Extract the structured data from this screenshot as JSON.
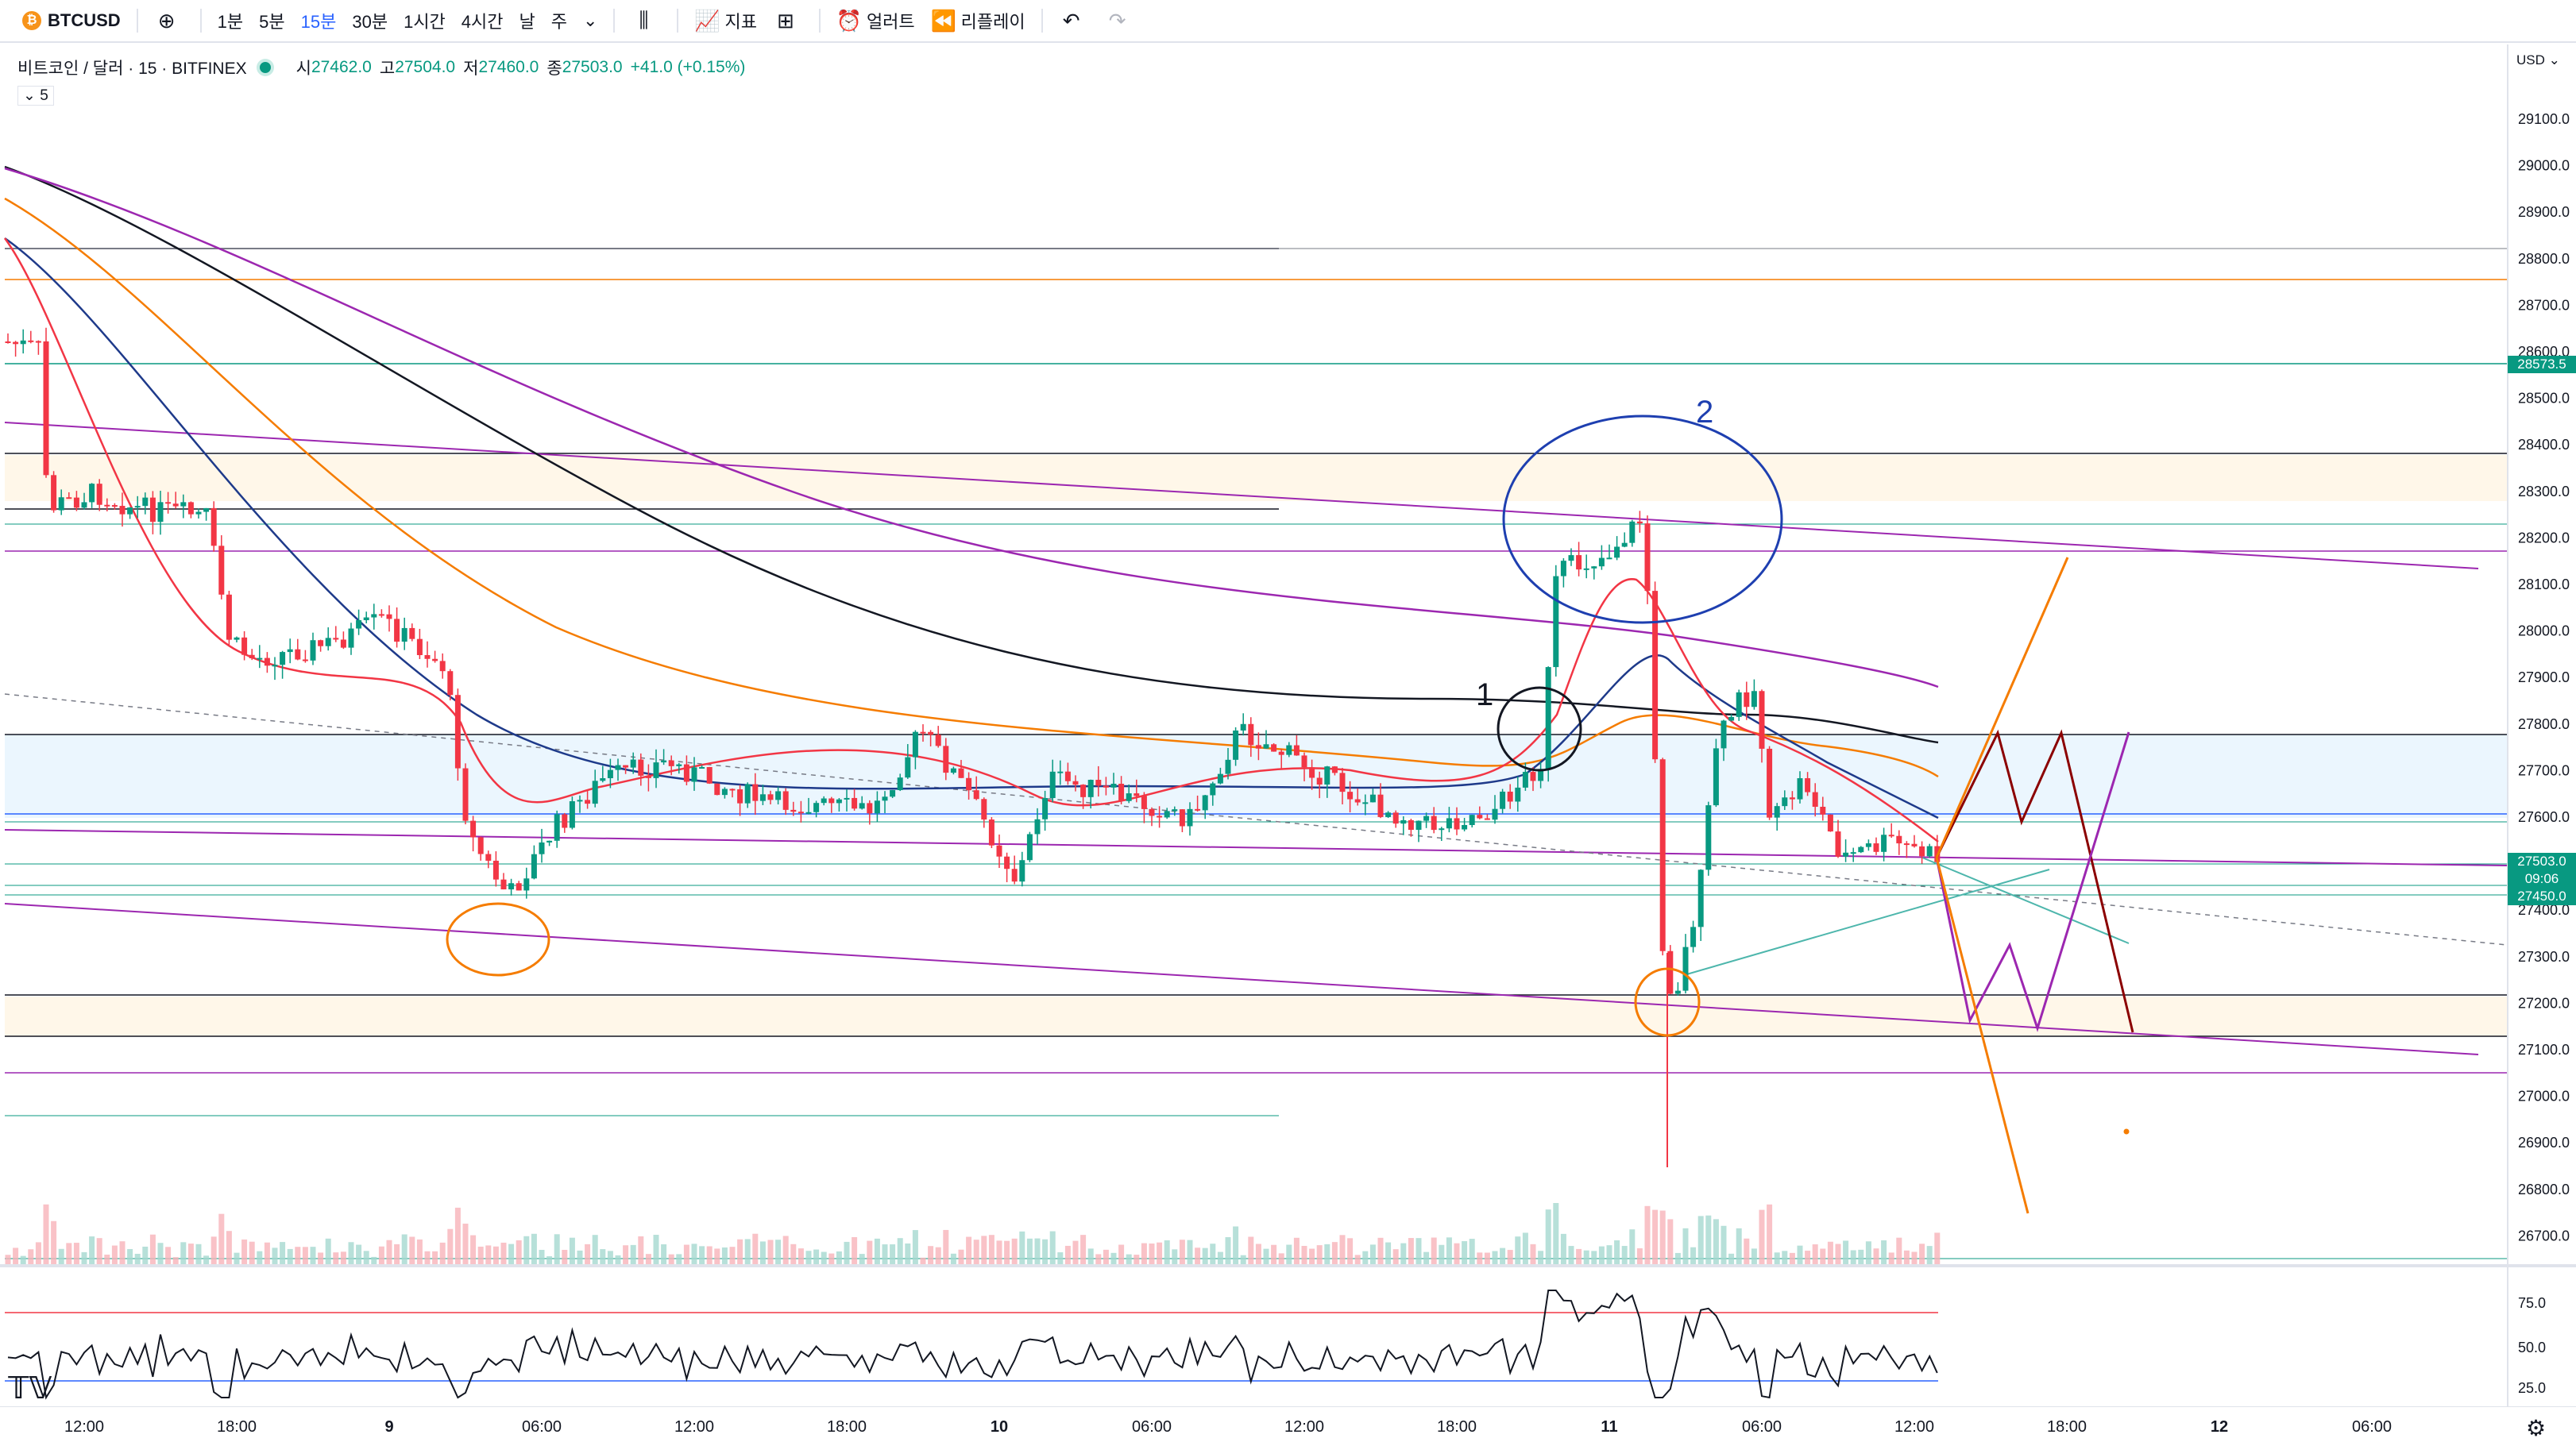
{
  "toolbar": {
    "symbol": "BTCUSD",
    "intervals": [
      "1분",
      "5분",
      "15분",
      "30분",
      "1시간",
      "4시간",
      "날",
      "주"
    ],
    "active_interval": "15분",
    "indicators_label": "지표",
    "alerts_label": "얼러트",
    "replay_label": "리플레이"
  },
  "legend": {
    "title": "비트코인 / 달러 · 15 · BITFINEX",
    "open_label": "시",
    "open": "27462.0",
    "high_label": "고",
    "high": "27504.0",
    "low_label": "저",
    "low": "27460.0",
    "close_label": "종",
    "close": "27503.0",
    "change": "+41.0 (+0.15%)",
    "collapse": "⌄ 5"
  },
  "price_axis": {
    "currency": "USD",
    "labels": [
      "29100.0",
      "29000.0",
      "28900.0",
      "28800.0",
      "28700.0",
      "28600.0",
      "28500.0",
      "28400.0",
      "28300.0",
      "28200.0",
      "28100.0",
      "28000.0",
      "27900.0",
      "27800.0",
      "27700.0",
      "27600.0",
      "27500.0",
      "27400.0",
      "27300.0",
      "27200.0",
      "27100.0",
      "27000.0",
      "26900.0",
      "26800.0",
      "26700.0"
    ],
    "tag_level": "28573.5",
    "tag_price": "27503.0",
    "tag_timer": "09:06",
    "tag_low": "27450.0",
    "rsi_labels": [
      "75.0",
      "50.0",
      "25.0"
    ]
  },
  "time_axis": {
    "labels": [
      {
        "t": "12:00",
        "bold": false
      },
      {
        "t": "18:00",
        "bold": false
      },
      {
        "t": "9",
        "bold": true
      },
      {
        "t": "06:00",
        "bold": false
      },
      {
        "t": "12:00",
        "bold": false
      },
      {
        "t": "18:00",
        "bold": false
      },
      {
        "t": "10",
        "bold": true
      },
      {
        "t": "06:00",
        "bold": false
      },
      {
        "t": "12:00",
        "bold": false
      },
      {
        "t": "18:00",
        "bold": false
      },
      {
        "t": "11",
        "bold": true
      },
      {
        "t": "06:00",
        "bold": false
      },
      {
        "t": "12:00",
        "bold": false
      },
      {
        "t": "18:00",
        "bold": false
      },
      {
        "t": "12",
        "bold": true
      },
      {
        "t": "06:00",
        "bold": false
      }
    ]
  },
  "annotations": {
    "label1": "1",
    "label2": "2"
  },
  "colors": {
    "up": "#089981",
    "down": "#f23645",
    "accent": "#2962ff"
  },
  "icons": [
    "add-symbol-icon",
    "chevron-down-icon",
    "candle-style-icon",
    "indicators-icon",
    "templates-icon",
    "alert-icon",
    "replay-icon",
    "undo-icon",
    "redo-icon",
    "settings-icon",
    "tradingview-logo-icon"
  ]
}
